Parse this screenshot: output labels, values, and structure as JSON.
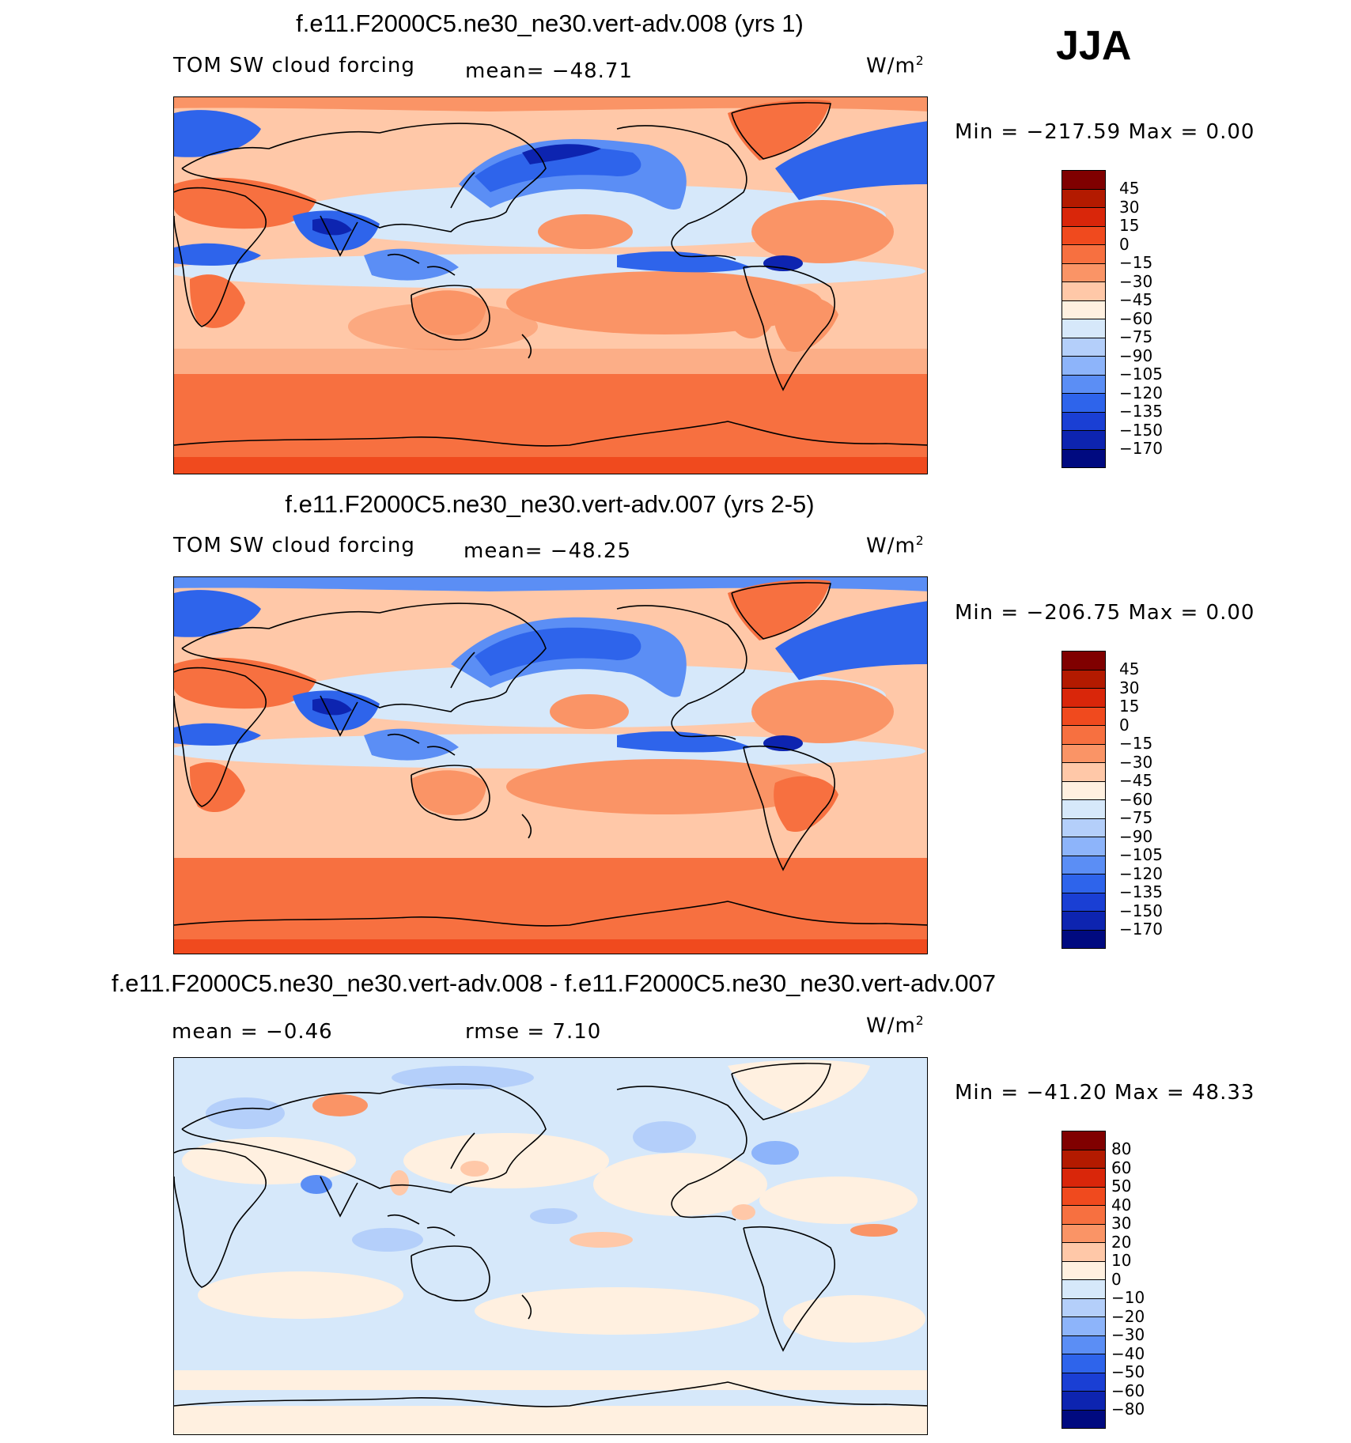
{
  "season": "JJA",
  "units_base": "W/m",
  "units_exp": "2",
  "panels": [
    {
      "title": "f.e11.F2000C5.ne30_ne30.vert-adv.008 (yrs 1)",
      "left_label": "TOM SW cloud forcing",
      "mid_label": "mean= −48.71",
      "minmax": "Min = −217.59 Max =    0.00"
    },
    {
      "title": "f.e11.F2000C5.ne30_ne30.vert-adv.007 (yrs 2-5)",
      "left_label": "TOM SW cloud forcing",
      "mid_label": "mean= −48.25",
      "minmax": "Min = −206.75 Max =    0.00"
    },
    {
      "title": "f.e11.F2000C5.ne30_ne30.vert-adv.008 - f.e11.F2000C5.ne30_ne30.vert-adv.007",
      "left_label": "mean =   −0.46",
      "mid_label": "rmse =    7.10",
      "minmax": "Min = −41.20 Max =  48.33"
    }
  ],
  "colorbars": {
    "field": {
      "labels": [
        "45",
        "30",
        "15",
        "0",
        "−15",
        "−30",
        "−45",
        "−60",
        "−75",
        "−90",
        "−105",
        "−120",
        "−135",
        "−150",
        "−170"
      ],
      "colors": [
        "#800000",
        "#b31a00",
        "#d9260a",
        "#f04a1e",
        "#f77040",
        "#fa9466",
        "#ffc8a8",
        "#fff0e0",
        "#d6e8fa",
        "#b4cffa",
        "#8db4fa",
        "#5b8ef5",
        "#2e64eb",
        "#1a3fd4",
        "#0d24b0",
        "#000a80"
      ]
    },
    "diff": {
      "labels": [
        "80",
        "60",
        "50",
        "40",
        "30",
        "20",
        "10",
        "0",
        "−10",
        "−20",
        "−30",
        "−40",
        "−50",
        "−60",
        "−80"
      ],
      "colors": [
        "#800000",
        "#b31a00",
        "#d9260a",
        "#f04a1e",
        "#f77040",
        "#fa9466",
        "#ffc8a8",
        "#fff0e0",
        "#d6e8fa",
        "#b4cffa",
        "#8db4fa",
        "#5b8ef5",
        "#2e64eb",
        "#1a3fd4",
        "#0d24b0",
        "#000a80"
      ]
    }
  },
  "map_colors": {
    "ocean_warm": "#f77040",
    "ocean_light": "#ffc8a8",
    "cloudy": "#2e64eb",
    "very_cloudy": "#0d24b0",
    "pale_blue": "#d6e8fa",
    "pale_red": "#fff0e0",
    "coast": "#000000"
  }
}
